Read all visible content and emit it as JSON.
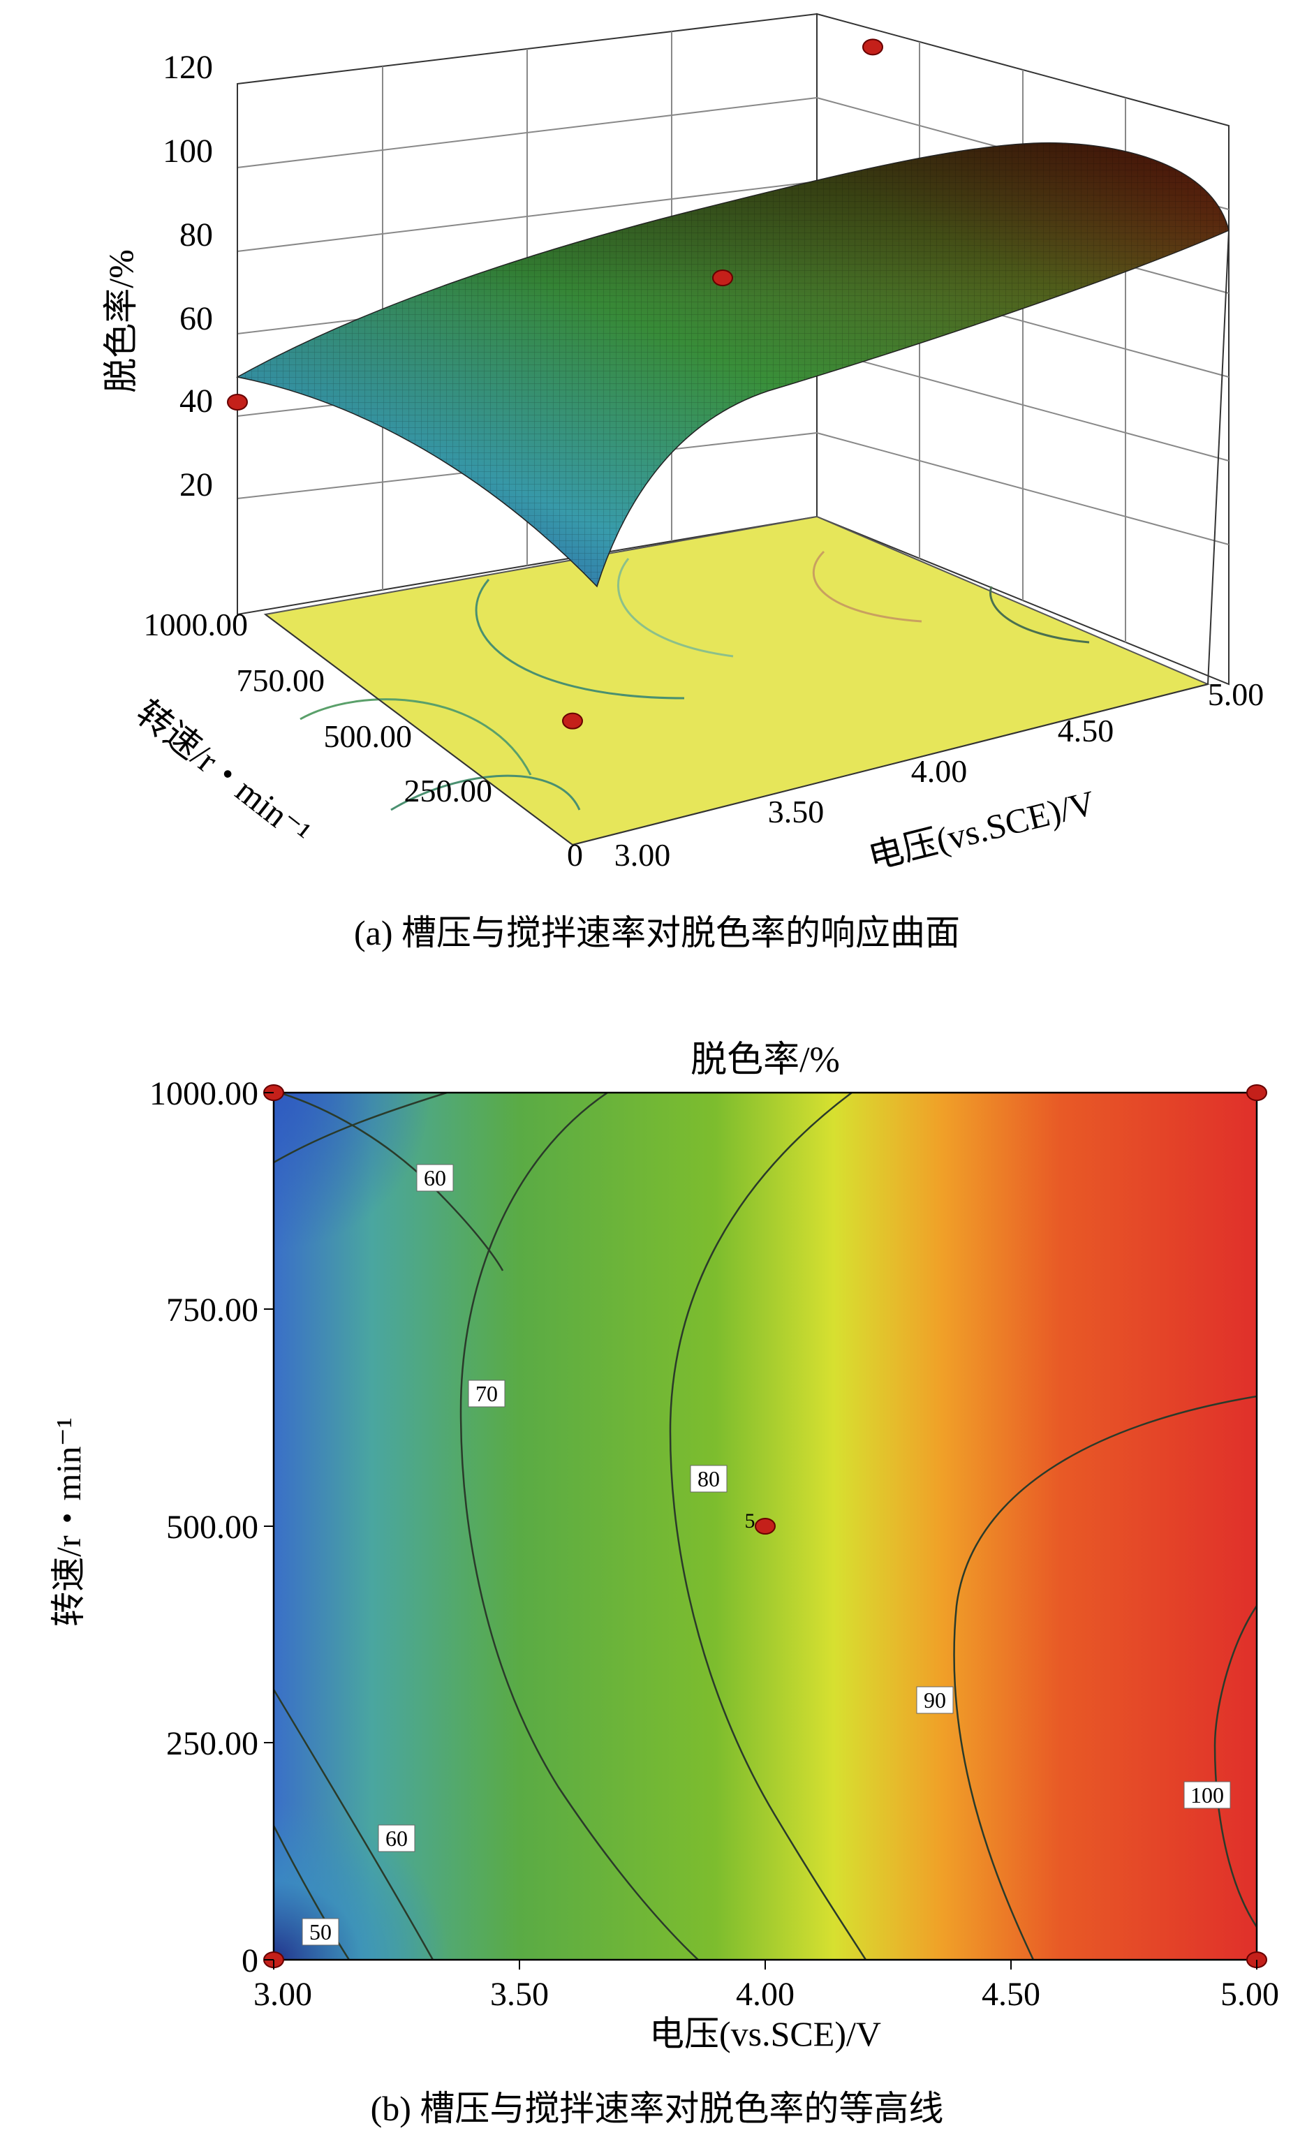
{
  "chart_data": [
    {
      "type": "surface",
      "caption": "(a) 槽压与搅拌速率对脱色率的响应曲面",
      "zlabel": "脱色率/%",
      "ylabel": "转速/r・min⁻¹",
      "xlabel": "电压(vs.SCE)/V",
      "z_ticks": [
        "120",
        "100",
        "80",
        "60",
        "40",
        "20"
      ],
      "y_ticks": [
        "1000.00",
        "750.00",
        "500.00",
        "250.00",
        "0"
      ],
      "x_ticks": [
        "3.00",
        "3.50",
        "4.00",
        "4.50",
        "5.00"
      ],
      "xlim": [
        3.0,
        5.0
      ],
      "ylim": [
        0,
        1000
      ],
      "zlim": [
        0,
        120
      ],
      "design_points": [
        {
          "x": 3.0,
          "y": 1000,
          "z": 48
        },
        {
          "x": 4.0,
          "y": 500,
          "z": 84
        },
        {
          "x": 5.0,
          "y": 1000,
          "z": 92
        },
        {
          "x": 3.0,
          "y": 0,
          "z": 28
        }
      ],
      "colors": {
        "base": "#e8e860",
        "low": "#2030a0",
        "mid": "#40a040",
        "high": "#b02010"
      }
    },
    {
      "type": "contour",
      "caption": "(b) 槽压与搅拌速率对脱色率的等高线",
      "title": "脱色率/%",
      "ylabel": "转速/r・min⁻¹",
      "xlabel": "电压(vs.SCE)/V",
      "x_ticks": [
        "3.00",
        "3.50",
        "4.00",
        "4.50",
        "5.00"
      ],
      "y_ticks": [
        "1000.00",
        "750.00",
        "500.00",
        "250.00",
        "0"
      ],
      "xlim": [
        3.0,
        5.0
      ],
      "ylim": [
        0,
        1000
      ],
      "contour_levels": [
        50,
        60,
        60,
        70,
        80,
        90,
        100
      ],
      "contour_labels": [
        "50",
        "60",
        "60",
        "70",
        "80",
        "90",
        "100"
      ],
      "center_point": {
        "x": 4.0,
        "y": 500,
        "label": "5"
      },
      "design_points": [
        {
          "x": 3.0,
          "y": 1000
        },
        {
          "x": 5.0,
          "y": 1000
        },
        {
          "x": 3.0,
          "y": 0
        },
        {
          "x": 5.0,
          "y": 0
        },
        {
          "x": 4.0,
          "y": 500
        }
      ]
    }
  ]
}
